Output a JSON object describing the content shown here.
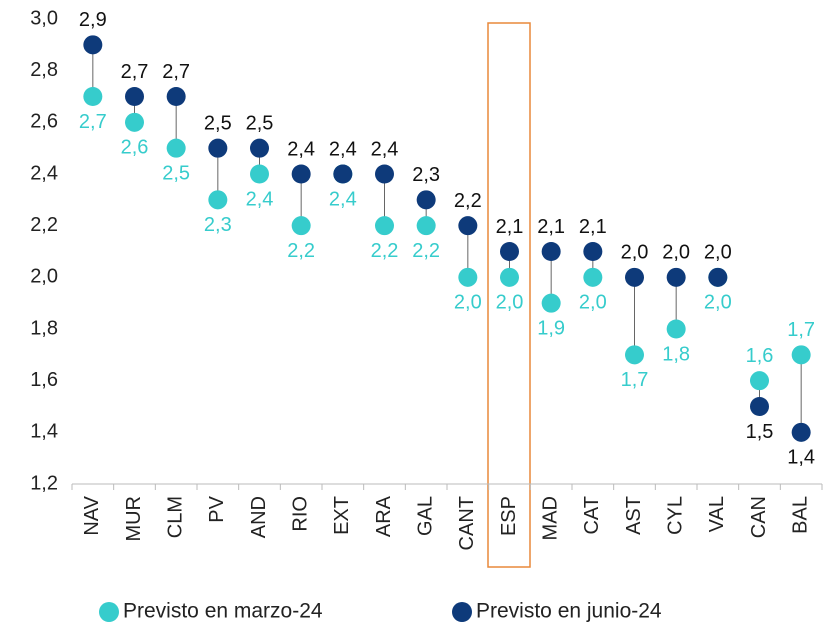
{
  "chart_data": {
    "type": "dumbbell",
    "categories": [
      "NAV",
      "MUR",
      "CLM",
      "PV",
      "AND",
      "RIO",
      "EXT",
      "ARA",
      "GAL",
      "CANT",
      "ESP",
      "MAD",
      "CAT",
      "AST",
      "CYL",
      "VAL",
      "CAN",
      "BAL"
    ],
    "series": [
      {
        "name": "Previsto en marzo-24",
        "color": "#36cccc",
        "values": [
          2.7,
          2.6,
          2.5,
          2.3,
          2.4,
          2.2,
          2.4,
          2.2,
          2.2,
          2.0,
          2.0,
          1.9,
          2.0,
          1.7,
          1.8,
          2.0,
          1.6,
          1.7
        ],
        "value_labels": [
          "2,7",
          "2,6",
          "2,5",
          "2,3",
          "2,4",
          "2,2",
          "2,4",
          "2,2",
          "2,2",
          "2,0",
          "2,0",
          "1,9",
          "2,0",
          "1,7",
          "1,8",
          "2,0",
          "1,6",
          "1,7"
        ]
      },
      {
        "name": "Previsto en junio-24",
        "color": "#0e3a7a",
        "values": [
          2.9,
          2.7,
          2.7,
          2.5,
          2.5,
          2.4,
          2.4,
          2.4,
          2.3,
          2.2,
          2.1,
          2.1,
          2.1,
          2.0,
          2.0,
          2.0,
          1.5,
          1.4
        ],
        "value_labels": [
          "2,9",
          "2,7",
          "2,7",
          "2,5",
          "2,5",
          "2,4",
          "2,4",
          "2,4",
          "2,3",
          "2,2",
          "2,1",
          "2,1",
          "2,1",
          "2,0",
          "2,0",
          "2,0",
          "1,5",
          "1,4"
        ]
      }
    ],
    "ylim": [
      1.2,
      3.0
    ],
    "yticks": [
      {
        "value": 1.2,
        "label": "1,2"
      },
      {
        "value": 1.4,
        "label": "1,4"
      },
      {
        "value": 1.6,
        "label": "1,6"
      },
      {
        "value": 1.8,
        "label": "1,8"
      },
      {
        "value": 2.0,
        "label": "2,0"
      },
      {
        "value": 2.2,
        "label": "2,2"
      },
      {
        "value": 2.4,
        "label": "2,4"
      },
      {
        "value": 2.6,
        "label": "2,6"
      },
      {
        "value": 2.8,
        "label": "2,8"
      },
      {
        "value": 3.0,
        "label": "3,0"
      }
    ],
    "legend": "bottom"
  }
}
